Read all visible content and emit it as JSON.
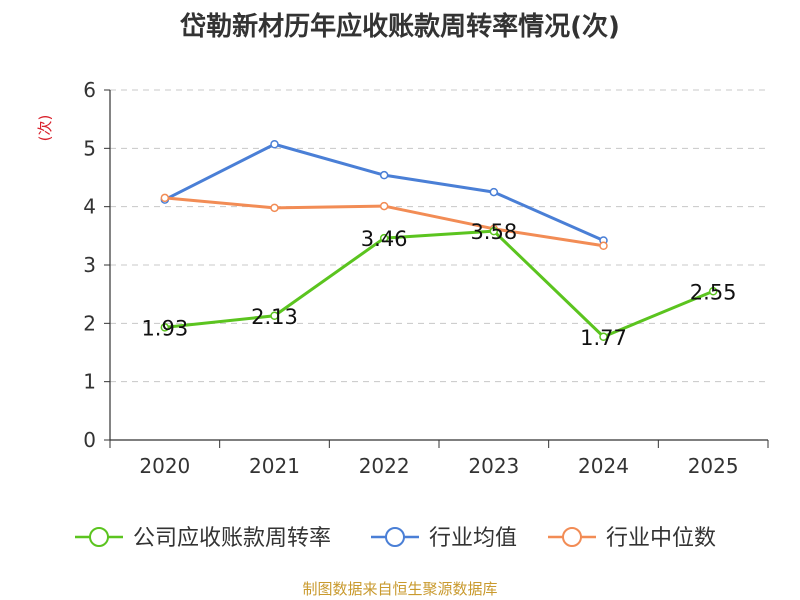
{
  "chart_data": {
    "type": "line",
    "title": "岱勒新材历年应收账款周转率情况(次)",
    "ylabel": "(次)",
    "xlabel": "",
    "categories": [
      "2020",
      "2021",
      "2022",
      "2023",
      "2024",
      "2025"
    ],
    "ylim": [
      0,
      6
    ],
    "yticks": [
      "0",
      "1",
      "2",
      "3",
      "4",
      "5",
      "6"
    ],
    "grid": true,
    "legend_position": "bottom",
    "series": [
      {
        "name": "公司应收账款周转率",
        "color": "#5bc41f",
        "values": [
          1.93,
          2.13,
          3.46,
          3.58,
          1.77,
          2.55
        ],
        "labels": [
          "1.93",
          "2.13",
          "3.46",
          "3.58",
          "1.77",
          "2.55"
        ]
      },
      {
        "name": "行业均值",
        "color": "#4a7fd6",
        "values": [
          4.12,
          5.07,
          4.54,
          4.25,
          3.42,
          null
        ]
      },
      {
        "name": "行业中位数",
        "color": "#f28c55",
        "values": [
          4.15,
          3.98,
          4.01,
          3.62,
          3.33,
          null
        ]
      }
    ]
  },
  "source": "制图数据来自恒生聚源数据库"
}
